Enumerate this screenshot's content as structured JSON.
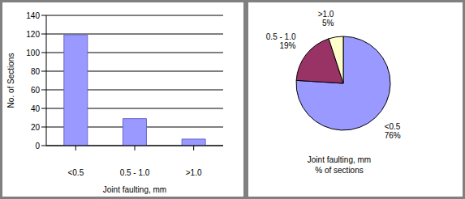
{
  "chart_data": [
    {
      "type": "bar",
      "categories": [
        "<0.5",
        "0.5 - 1.0",
        ">1.0"
      ],
      "values": [
        119,
        29,
        7
      ],
      "color": "#9999ff",
      "ylim": [
        0,
        140
      ],
      "yticks": [
        0,
        20,
        40,
        60,
        80,
        100,
        120,
        140
      ],
      "grid": true,
      "xlabel": "Joint faulting, mm",
      "ylabel": "No. of Sections"
    },
    {
      "type": "pie",
      "title": "Joint faulting, mm",
      "subtitle": "% of sections",
      "categories": [
        "<0.5",
        "0.5 - 1.0",
        ">1.0"
      ],
      "values": [
        76,
        19,
        5
      ],
      "value_labels": [
        "76%",
        "19%",
        "5%"
      ],
      "colors": [
        "#9999ff",
        "#993366",
        "#ffffcc"
      ]
    }
  ]
}
